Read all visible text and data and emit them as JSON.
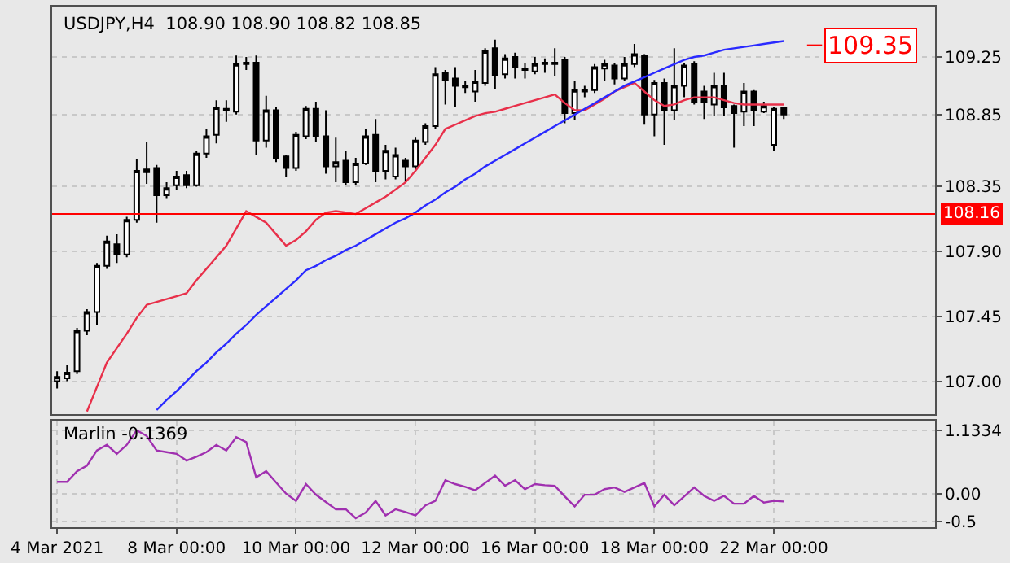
{
  "chart_data": [
    {
      "type": "candlestick",
      "title": "USDJPY,H4  108.90 108.90 108.82 108.85",
      "color": "#000000",
      "categories": [
        null,
        null,
        null,
        null,
        null,
        null,
        null,
        null,
        null,
        null,
        null,
        null,
        null,
        null,
        null,
        null,
        null,
        null,
        null,
        null,
        null,
        null,
        null,
        null,
        null,
        null,
        null,
        null,
        null,
        null,
        null,
        null,
        null,
        null,
        null,
        null,
        null,
        null,
        null,
        null,
        null,
        null,
        null,
        null,
        null,
        null,
        null,
        null,
        null,
        null,
        null,
        null,
        null,
        null,
        null,
        null,
        null,
        null,
        null,
        null,
        null,
        null,
        null,
        null,
        null,
        null,
        null,
        null,
        null,
        null,
        null,
        null,
        null,
        null
      ],
      "ohlc": [
        [
          107.0,
          107.07,
          106.95,
          107.03
        ],
        [
          107.02,
          107.11,
          107.0,
          107.06
        ],
        [
          107.07,
          107.37,
          107.05,
          107.35
        ],
        [
          107.35,
          107.5,
          107.32,
          107.48
        ],
        [
          107.48,
          107.82,
          107.39,
          107.8
        ],
        [
          107.8,
          108.01,
          107.78,
          107.97
        ],
        [
          107.95,
          108.02,
          107.82,
          107.88
        ],
        [
          107.88,
          108.14,
          107.86,
          108.12
        ],
        [
          108.12,
          108.54,
          108.1,
          108.46
        ],
        [
          108.45,
          108.66,
          108.37,
          108.47
        ],
        [
          108.48,
          108.5,
          108.1,
          108.29
        ],
        [
          108.29,
          108.38,
          108.27,
          108.34
        ],
        [
          108.36,
          108.46,
          108.33,
          108.42
        ],
        [
          108.43,
          108.46,
          108.34,
          108.36
        ],
        [
          108.36,
          108.6,
          108.35,
          108.58
        ],
        [
          108.58,
          108.75,
          108.55,
          108.7
        ],
        [
          108.71,
          108.95,
          108.65,
          108.9
        ],
        [
          108.88,
          108.95,
          108.8,
          108.89
        ],
        [
          108.87,
          109.26,
          108.85,
          109.2
        ],
        [
          109.2,
          109.25,
          109.16,
          109.21
        ],
        [
          109.21,
          109.26,
          108.57,
          108.67
        ],
        [
          108.67,
          108.98,
          108.62,
          108.88
        ],
        [
          108.88,
          108.9,
          108.52,
          108.55
        ],
        [
          108.56,
          108.57,
          108.42,
          108.48
        ],
        [
          108.48,
          108.73,
          108.46,
          108.71
        ],
        [
          108.7,
          108.91,
          108.68,
          108.89
        ],
        [
          108.89,
          108.94,
          108.66,
          108.7
        ],
        [
          108.7,
          108.88,
          108.44,
          108.49
        ],
        [
          108.49,
          108.69,
          108.38,
          108.52
        ],
        [
          108.53,
          108.6,
          108.36,
          108.38
        ],
        [
          108.38,
          108.55,
          108.36,
          108.51
        ],
        [
          108.51,
          108.75,
          108.5,
          108.7
        ],
        [
          108.71,
          108.82,
          108.38,
          108.46
        ],
        [
          108.46,
          108.64,
          108.4,
          108.6
        ],
        [
          108.42,
          108.62,
          108.4,
          108.57
        ],
        [
          108.53,
          108.55,
          108.38,
          108.49
        ],
        [
          108.49,
          108.69,
          108.47,
          108.67
        ],
        [
          108.66,
          108.79,
          108.64,
          108.77
        ],
        [
          108.77,
          109.18,
          108.75,
          109.13
        ],
        [
          109.14,
          109.16,
          108.92,
          109.09
        ],
        [
          109.1,
          109.18,
          108.9,
          109.05
        ],
        [
          109.05,
          109.08,
          109.0,
          109.04
        ],
        [
          109.01,
          109.16,
          108.94,
          109.08
        ],
        [
          109.07,
          109.31,
          109.05,
          109.29
        ],
        [
          109.31,
          109.37,
          109.03,
          109.12
        ],
        [
          109.13,
          109.27,
          109.1,
          109.24
        ],
        [
          109.25,
          109.28,
          109.1,
          109.18
        ],
        [
          109.17,
          109.21,
          109.1,
          109.16
        ],
        [
          109.15,
          109.25,
          109.13,
          109.2
        ],
        [
          109.2,
          109.24,
          109.14,
          109.21
        ],
        [
          109.2,
          109.31,
          109.12,
          109.21
        ],
        [
          109.23,
          109.25,
          108.79,
          108.86
        ],
        [
          108.86,
          109.08,
          108.81,
          109.02
        ],
        [
          109.01,
          109.05,
          108.97,
          109.02
        ],
        [
          109.02,
          109.2,
          109.0,
          109.18
        ],
        [
          109.17,
          109.23,
          109.08,
          109.2
        ],
        [
          109.19,
          109.21,
          109.06,
          109.1
        ],
        [
          109.1,
          109.25,
          109.08,
          109.2
        ],
        [
          109.2,
          109.34,
          109.18,
          109.27
        ],
        [
          109.26,
          109.27,
          108.78,
          108.85
        ],
        [
          108.85,
          109.09,
          108.7,
          109.07
        ],
        [
          109.07,
          109.1,
          108.64,
          108.88
        ],
        [
          108.88,
          109.31,
          108.81,
          109.05
        ],
        [
          109.05,
          109.21,
          108.97,
          109.19
        ],
        [
          109.2,
          109.22,
          108.92,
          108.94
        ],
        [
          109.01,
          109.05,
          108.82,
          108.94
        ],
        [
          108.92,
          109.14,
          108.84,
          109.05
        ],
        [
          109.05,
          109.14,
          108.84,
          108.9
        ],
        [
          108.91,
          108.92,
          108.62,
          108.86
        ],
        [
          108.87,
          109.07,
          108.77,
          109.01
        ],
        [
          109.01,
          109.02,
          108.77,
          108.88
        ],
        [
          108.87,
          108.94,
          108.86,
          108.91
        ],
        [
          108.64,
          108.9,
          108.6,
          108.89
        ],
        [
          108.9,
          108.9,
          108.82,
          108.85
        ]
      ],
      "series": [
        {
          "type": "line",
          "color": "#e8304a",
          "values": [
            null,
            null,
            null,
            106.79,
            106.96,
            107.13,
            107.23,
            107.33,
            107.44,
            107.53,
            107.55,
            107.57,
            107.59,
            107.61,
            107.7,
            107.78,
            107.86,
            107.94,
            108.06,
            108.18,
            108.14,
            108.1,
            108.02,
            107.94,
            107.98,
            108.04,
            108.12,
            108.17,
            108.18,
            108.17,
            108.16,
            108.2,
            108.24,
            108.28,
            108.33,
            108.38,
            108.46,
            108.55,
            108.64,
            108.75,
            108.78,
            108.81,
            108.84,
            108.86,
            108.87,
            108.89,
            108.91,
            108.93,
            108.95,
            108.97,
            108.99,
            108.93,
            108.88,
            108.88,
            108.92,
            108.96,
            109.01,
            109.04,
            109.07,
            109.01,
            108.95,
            108.91,
            108.92,
            108.95,
            108.97,
            108.97,
            108.97,
            108.95,
            108.93,
            108.92,
            108.92,
            108.92,
            108.92,
            108.92
          ]
        },
        {
          "type": "line",
          "color": "#2a2aff",
          "values": [
            null,
            null,
            null,
            null,
            null,
            null,
            null,
            null,
            null,
            null,
            106.8,
            106.87,
            106.93,
            107.0,
            107.07,
            107.13,
            107.2,
            107.26,
            107.33,
            107.39,
            107.46,
            107.52,
            107.58,
            107.64,
            107.7,
            107.77,
            107.8,
            107.84,
            107.87,
            107.91,
            107.94,
            107.98,
            108.02,
            108.06,
            108.1,
            108.13,
            108.17,
            108.22,
            108.26,
            108.31,
            108.35,
            108.4,
            108.44,
            108.49,
            108.53,
            108.57,
            108.61,
            108.65,
            108.69,
            108.73,
            108.77,
            108.81,
            108.85,
            108.89,
            108.93,
            108.97,
            109.01,
            109.05,
            109.08,
            109.11,
            109.14,
            109.17,
            109.2,
            109.23,
            109.25,
            109.26,
            109.28,
            109.3,
            109.31,
            109.32,
            109.33,
            109.34,
            109.35,
            109.36
          ]
        }
      ],
      "ylim": [
        106.77,
        109.6
      ],
      "yticks": [
        {
          "value": 107.0,
          "label": "107.00"
        },
        {
          "value": 107.45,
          "label": "107.45"
        },
        {
          "value": 107.9,
          "label": "107.90"
        },
        {
          "value": 108.35,
          "label": "108.35"
        },
        {
          "value": 108.85,
          "label": "108.85"
        },
        {
          "value": 109.25,
          "label": "109.25"
        }
      ],
      "ref_lines": [
        {
          "axis": "y",
          "value": 108.16,
          "label": "108.16",
          "color": "#ff0000"
        }
      ],
      "annotations": [
        "109.35"
      ],
      "tick_labels": "y",
      "grid": "y"
    },
    {
      "type": "line",
      "title": "Marlin -0.1369",
      "color": "#a030b0",
      "categories": [
        "4 Mar 2021",
        null,
        null,
        null,
        null,
        null,
        null,
        null,
        null,
        null,
        null,
        null,
        "8 Mar 00:00",
        null,
        null,
        null,
        null,
        null,
        null,
        null,
        null,
        null,
        null,
        null,
        "10 Mar 00:00",
        null,
        null,
        null,
        null,
        null,
        null,
        null,
        null,
        null,
        null,
        null,
        "12 Mar 00:00",
        null,
        null,
        null,
        null,
        null,
        null,
        null,
        null,
        null,
        null,
        null,
        "16 Mar 00:00",
        null,
        null,
        null,
        null,
        null,
        null,
        null,
        null,
        null,
        null,
        null,
        "18 Mar 00:00",
        null,
        null,
        null,
        null,
        null,
        null,
        null,
        null,
        null,
        null,
        null,
        "22 Mar 00:00",
        null
      ],
      "values": [
        0.21,
        0.21,
        0.4,
        0.5,
        0.77,
        0.87,
        0.71,
        0.87,
        1.13,
        1.03,
        0.77,
        0.74,
        0.71,
        0.59,
        0.66,
        0.74,
        0.87,
        0.77,
        1.01,
        0.92,
        0.29,
        0.4,
        0.2,
        0.0,
        -0.13,
        0.17,
        -0.02,
        -0.15,
        -0.28,
        -0.28,
        -0.44,
        -0.34,
        -0.13,
        -0.39,
        -0.28,
        -0.33,
        -0.39,
        -0.21,
        -0.13,
        0.24,
        0.17,
        0.12,
        0.06,
        0.19,
        0.32,
        0.14,
        0.24,
        0.08,
        0.17,
        0.15,
        0.14,
        -0.05,
        -0.23,
        -0.02,
        -0.02,
        0.08,
        0.11,
        0.03,
        0.11,
        0.19,
        -0.23,
        -0.02,
        -0.21,
        -0.05,
        0.11,
        -0.04,
        -0.13,
        -0.04,
        -0.18,
        -0.18,
        -0.04,
        -0.16,
        -0.13,
        -0.14
      ],
      "ylim": [
        -0.6,
        1.3
      ],
      "yticks": [
        {
          "value": 1.1334,
          "label": "1.1334"
        },
        {
          "value": 0,
          "label": "0.00"
        },
        {
          "value": -0.5,
          "label": "-0.5"
        }
      ],
      "grid": true
    }
  ]
}
